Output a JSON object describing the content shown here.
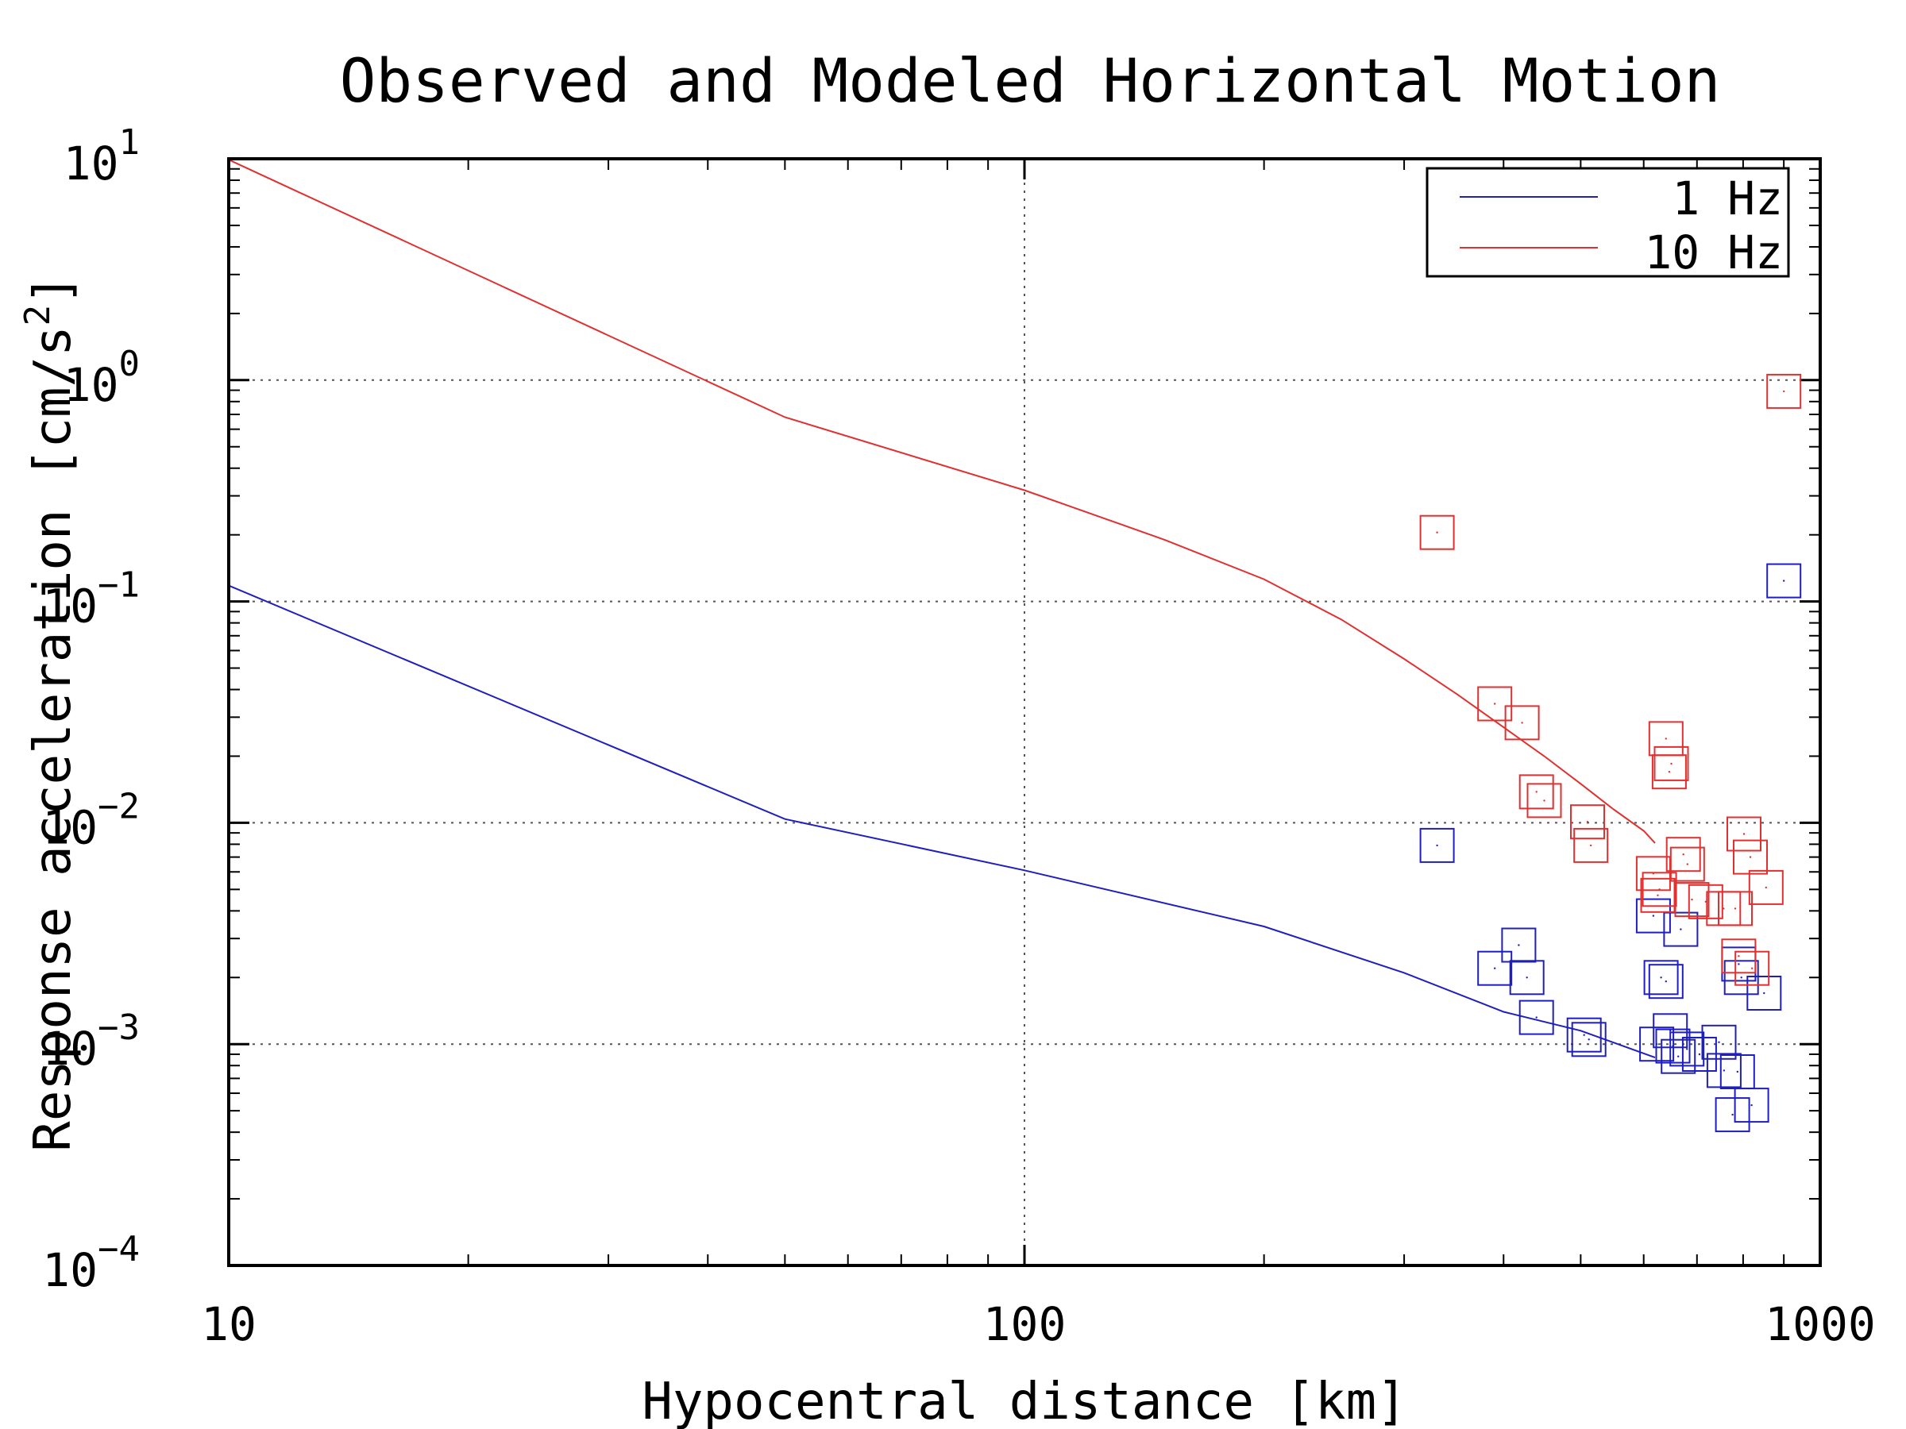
{
  "chart_data": {
    "type": "line",
    "title": "Observed and Modeled Horizontal Motion",
    "xlabel": "Hypocentral distance [km]",
    "ylabel_parts": [
      "Response acceleration [cm/s",
      "2",
      "]"
    ],
    "x_scale": "log",
    "y_scale": "log",
    "xlim": [
      10,
      1000
    ],
    "ylim": [
      0.0001,
      10
    ],
    "x_ticks": [
      {
        "value": 10,
        "label": "10"
      },
      {
        "value": 100,
        "label": "100"
      },
      {
        "value": 1000,
        "label": "1000"
      }
    ],
    "y_ticks": [
      {
        "value": 10,
        "base": "10",
        "exp": "1"
      },
      {
        "value": 1,
        "base": "10",
        "exp": "0"
      },
      {
        "value": 0.1,
        "base": "10",
        "exp": "−1"
      },
      {
        "value": 0.01,
        "base": "10",
        "exp": "−2"
      },
      {
        "value": 0.001,
        "base": "10",
        "exp": "−3"
      },
      {
        "value": 0.0001,
        "base": "10",
        "exp": "−4"
      }
    ],
    "grid": true,
    "legend_position": "top-right",
    "series": [
      {
        "name": "1 Hz",
        "color": "#1f1fbf",
        "line": [
          [
            10,
            0.118
          ],
          [
            50,
            0.0104
          ],
          [
            100,
            0.0061
          ],
          [
            200,
            0.0034
          ],
          [
            300,
            0.0021
          ],
          [
            400,
            0.0014
          ],
          [
            500,
            0.00115
          ],
          [
            620,
            0.00087
          ]
        ],
        "observed": [
          [
            330,
            0.0079
          ],
          [
            390,
            0.0022
          ],
          [
            418,
            0.0028
          ],
          [
            428,
            0.002
          ],
          [
            440,
            0.00132
          ],
          [
            505,
            0.0011
          ],
          [
            512,
            0.00105
          ],
          [
            617,
            0.0038
          ],
          [
            623,
            0.001
          ],
          [
            631,
            0.002
          ],
          [
            640,
            0.00192
          ],
          [
            648,
            0.00115
          ],
          [
            653,
            0.00098
          ],
          [
            663,
            0.00088
          ],
          [
            668,
            0.0033
          ],
          [
            680,
            0.00095
          ],
          [
            705,
            0.0009
          ],
          [
            746,
            0.00102
          ],
          [
            757,
            0.00076
          ],
          [
            776,
            0.00048
          ],
          [
            787,
            0.00075
          ],
          [
            790,
            0.0023
          ],
          [
            796,
            0.002
          ],
          [
            820,
            0.00053
          ],
          [
            850,
            0.0017
          ],
          [
            900,
            0.124
          ]
        ]
      },
      {
        "name": "10 Hz",
        "color": "#e03030",
        "line": [
          [
            10,
            9.9
          ],
          [
            50,
            0.68
          ],
          [
            100,
            0.318
          ],
          [
            150,
            0.19
          ],
          [
            200,
            0.126
          ],
          [
            250,
            0.083
          ],
          [
            300,
            0.055
          ],
          [
            350,
            0.038
          ],
          [
            400,
            0.027
          ],
          [
            450,
            0.02
          ],
          [
            500,
            0.015
          ],
          [
            550,
            0.0115
          ],
          [
            600,
            0.0092
          ],
          [
            620,
            0.0081
          ]
        ],
        "observed": [
          [
            330,
            0.205
          ],
          [
            390,
            0.0345
          ],
          [
            422,
            0.0283
          ],
          [
            440,
            0.0138
          ],
          [
            450,
            0.0126
          ],
          [
            510,
            0.0101
          ],
          [
            515,
            0.0079
          ],
          [
            617,
            0.0059
          ],
          [
            625,
            0.0047
          ],
          [
            628,
            0.005
          ],
          [
            640,
            0.024
          ],
          [
            646,
            0.017
          ],
          [
            650,
            0.0185
          ],
          [
            673,
            0.0072
          ],
          [
            681,
            0.0065
          ],
          [
            690,
            0.0045
          ],
          [
            718,
            0.0044
          ],
          [
            756,
            0.0041
          ],
          [
            782,
            0.0041
          ],
          [
            790,
            0.0025
          ],
          [
            802,
            0.0089
          ],
          [
            817,
            0.007
          ],
          [
            821,
            0.0022
          ],
          [
            855,
            0.0051
          ],
          [
            900,
            0.89
          ]
        ]
      }
    ]
  }
}
